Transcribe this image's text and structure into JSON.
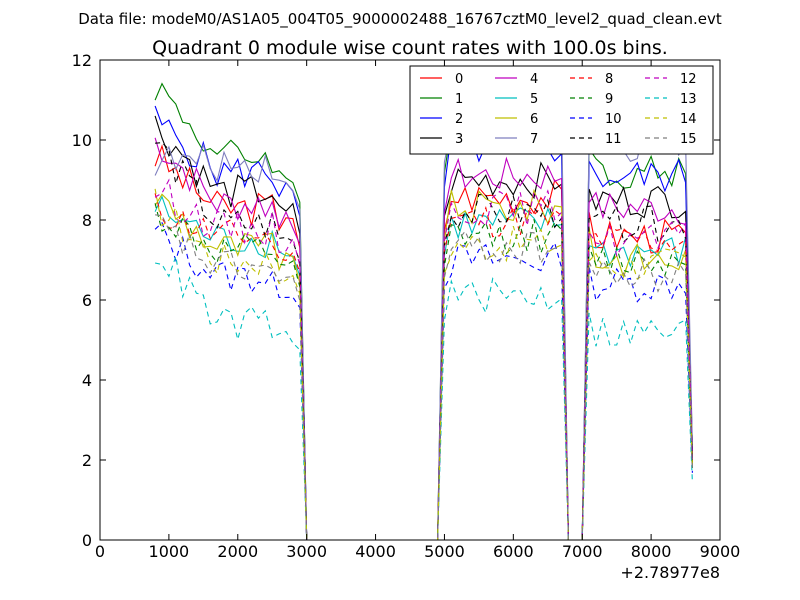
{
  "figure": {
    "suptitle": "Data file: modeM0/AS1A05_004T05_9000002488_16767cztM0_level2_quad_clean.evt"
  },
  "chart_data": {
    "type": "line",
    "title": "Quadrant 0 module wise count rates with 100.0s bins.",
    "xlabel": "",
    "ylabel": "",
    "xlim": [
      0,
      9000
    ],
    "ylim": [
      0,
      12
    ],
    "x_ticks": [
      0,
      1000,
      2000,
      3000,
      4000,
      5000,
      6000,
      7000,
      8000,
      9000
    ],
    "y_ticks": [
      0,
      2,
      4,
      6,
      8,
      10,
      12
    ],
    "x_tick_labels": [
      "0",
      "1000",
      "2000",
      "3000",
      "4000",
      "5000",
      "6000",
      "7000",
      "8000",
      "9000"
    ],
    "y_tick_labels": [
      "0",
      "2",
      "4",
      "6",
      "8",
      "10",
      "12"
    ],
    "x_offset_label": "+2.78977e8",
    "grid": false,
    "legend_position": "top-right",
    "legend_columns": 4,
    "series_profile": {
      "x_start": 800,
      "x_end": 8600,
      "bin_width": 100,
      "segments": [
        {
          "start": 800,
          "end": 2900,
          "decay": 0.22,
          "end_factor": 0.86
        },
        {
          "start": 5000,
          "end": 6700,
          "rise": 0.0,
          "end_factor": 1.0
        },
        {
          "start": 7100,
          "end": 8500,
          "end_factor": 0.9
        }
      ],
      "gaps": [
        [
          3000,
          4900
        ],
        [
          6800,
          7000
        ]
      ]
    },
    "series": [
      {
        "name": "0",
        "color": "#ff0000",
        "dash": "solid",
        "level": 8.3,
        "first": 9.6,
        "mid": 8.6,
        "end": 7.6
      },
      {
        "name": "1",
        "color": "#008000",
        "dash": "solid",
        "level": 9.6,
        "first": 11.4,
        "mid": 10.2,
        "end": 9.2
      },
      {
        "name": "2",
        "color": "#0000ff",
        "dash": "solid",
        "level": 9.2,
        "first": 10.5,
        "mid": 9.8,
        "end": 9.1
      },
      {
        "name": "3",
        "color": "#000000",
        "dash": "solid",
        "level": 8.7,
        "first": 10.4,
        "mid": 9.0,
        "end": 8.5
      },
      {
        "name": "4",
        "color": "#bf00bf",
        "dash": "solid",
        "level": 8.4,
        "first": 10.0,
        "mid": 9.1,
        "end": 8.3
      },
      {
        "name": "5",
        "color": "#00bfbf",
        "dash": "solid",
        "level": 7.5,
        "first": 8.3,
        "mid": 7.9,
        "end": 7.2
      },
      {
        "name": "6",
        "color": "#bfbf00",
        "dash": "solid",
        "level": 7.3,
        "first": 8.6,
        "mid": 8.3,
        "end": 7.0
      },
      {
        "name": "7",
        "color": "#7f7fbf",
        "dash": "solid",
        "level": 9.4,
        "first": 9.5,
        "mid": 10.5,
        "end": 9.8
      },
      {
        "name": "8",
        "color": "#ff0000",
        "dash": "dashed",
        "level": 7.6,
        "first": 8.3,
        "mid": 8.0,
        "end": 7.5
      },
      {
        "name": "9",
        "color": "#008000",
        "dash": "dashed",
        "level": 7.2,
        "first": 8.2,
        "mid": 7.6,
        "end": 7.0
      },
      {
        "name": "10",
        "color": "#0000ff",
        "dash": "dashed",
        "level": 6.6,
        "first": 7.7,
        "mid": 7.0,
        "end": 6.4
      },
      {
        "name": "11",
        "color": "#000000",
        "dash": "dashed",
        "level": 7.9,
        "first": 10.0,
        "mid": 8.2,
        "end": 7.9
      },
      {
        "name": "12",
        "color": "#bf00bf",
        "dash": "dashed",
        "level": 7.8,
        "first": 8.8,
        "mid": 8.3,
        "end": 7.5
      },
      {
        "name": "13",
        "color": "#00bfbf",
        "dash": "dashed",
        "level": 5.4,
        "first": 7.3,
        "mid": 6.1,
        "end": 5.2
      },
      {
        "name": "14",
        "color": "#bfbf00",
        "dash": "dashed",
        "level": 7.0,
        "first": 8.4,
        "mid": 7.4,
        "end": 6.9
      },
      {
        "name": "15",
        "color": "#7f7f7f",
        "dash": "dashed",
        "level": 6.8,
        "first": 7.9,
        "mid": 7.3,
        "end": 6.6
      }
    ]
  }
}
